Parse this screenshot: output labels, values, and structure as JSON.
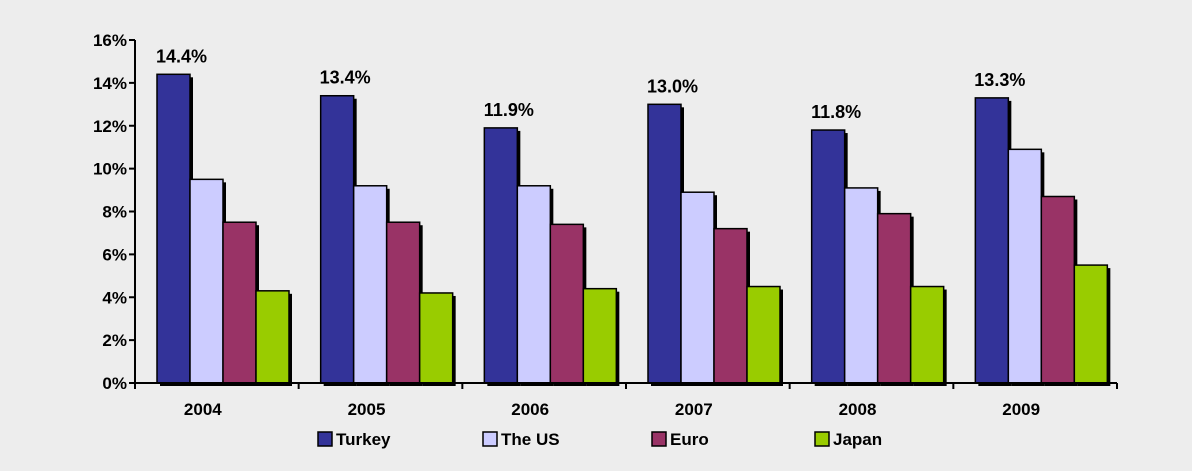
{
  "chart_data": {
    "type": "bar",
    "categories": [
      "2004",
      "2005",
      "2006",
      "2007",
      "2008",
      "2009"
    ],
    "series": [
      {
        "name": "Turkey",
        "values": [
          14.4,
          13.4,
          11.9,
          13.0,
          11.8,
          13.3
        ],
        "color": "#333399"
      },
      {
        "name": "The US",
        "values": [
          9.5,
          9.2,
          9.2,
          8.9,
          9.1,
          10.9
        ],
        "color": "#ccccff"
      },
      {
        "name": "Euro",
        "values": [
          7.5,
          7.5,
          7.4,
          7.2,
          7.9,
          8.7
        ],
        "color": "#993366"
      },
      {
        "name": "Japan",
        "values": [
          4.3,
          4.2,
          4.4,
          4.5,
          4.5,
          5.5
        ],
        "color": "#99cc00"
      }
    ],
    "data_labels": [
      "14.4%",
      "13.4%",
      "11.9%",
      "13.0%",
      "11.8%",
      "13.3%"
    ],
    "y_ticks": [
      "0%",
      "2%",
      "4%",
      "6%",
      "8%",
      "10%",
      "12%",
      "14%",
      "16%"
    ],
    "ylim": [
      0,
      16
    ],
    "title": "",
    "xlabel": "",
    "ylabel": "",
    "grid": false,
    "legend_position": "bottom"
  }
}
